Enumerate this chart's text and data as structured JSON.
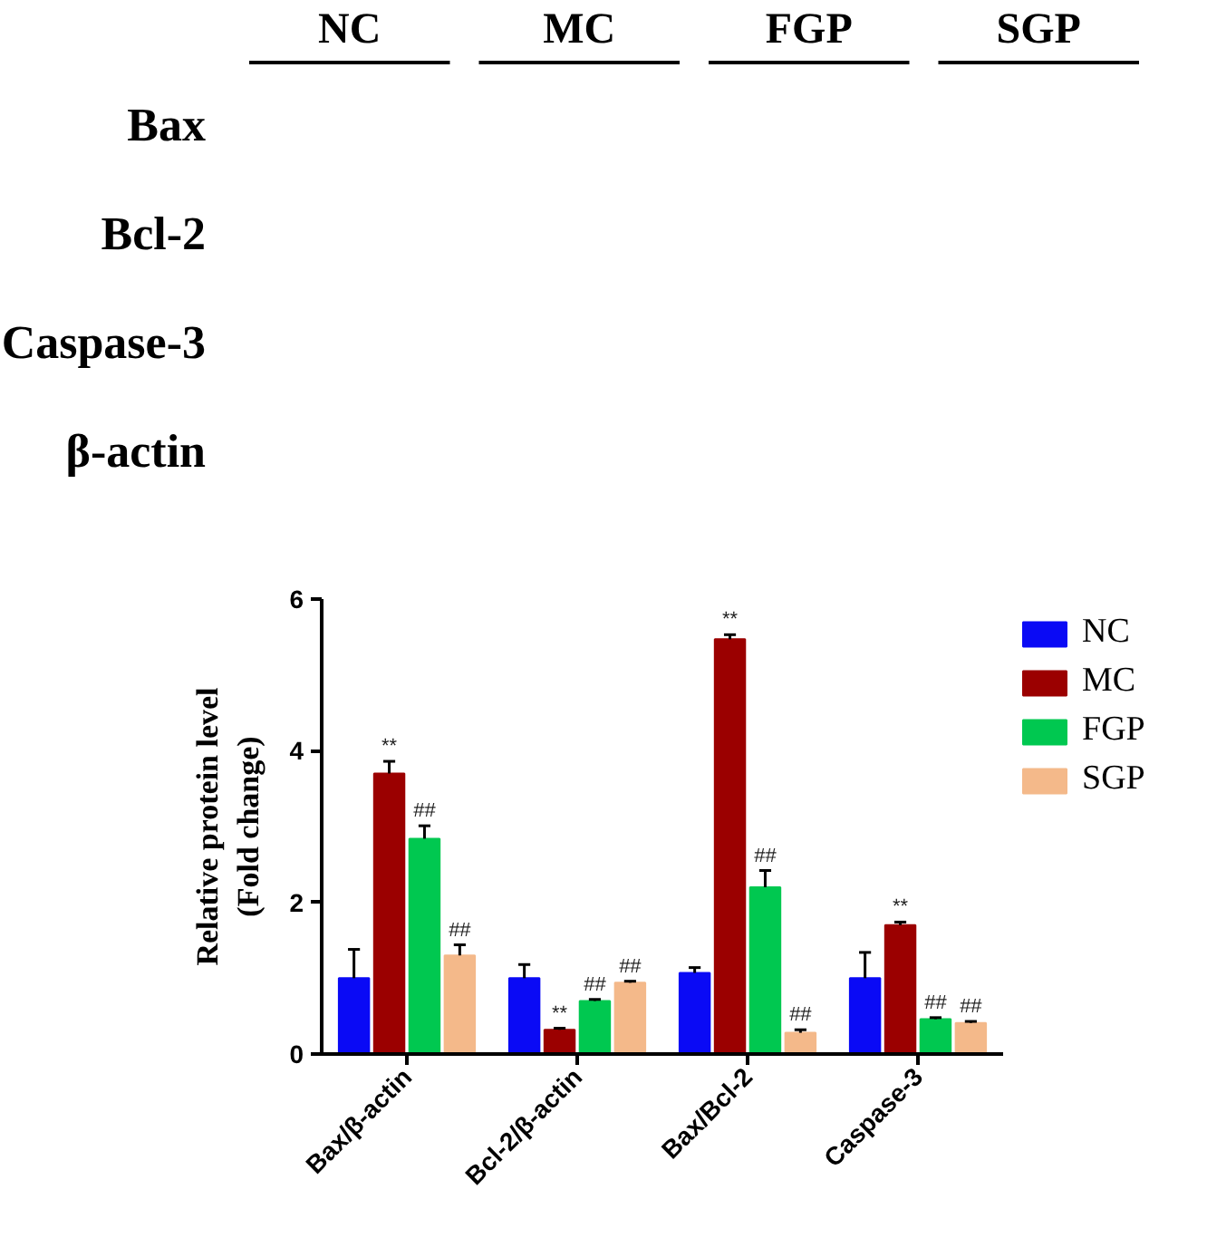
{
  "chart_data": [
    {
      "type": "other",
      "categories": [
        "NC",
        "MC",
        "FGP",
        "SGP"
      ],
      "y_categories": [
        "Bax",
        "Bcl-2",
        "Caspase-3",
        "β-actin"
      ]
    },
    {
      "type": "bar",
      "ylabel": "Relative protein level\n(Fold change)",
      "categories": [
        "Bax/β-actin",
        "Bcl-2/β-actin",
        "Bax/Bcl-2",
        "Caspase-3"
      ],
      "series": [
        {
          "name": "NC",
          "color": "#0a0af5",
          "values": [
            1.0,
            1.0,
            1.07,
            1.0
          ],
          "errors": [
            [
              1.0,
              1.38
            ],
            [
              1.0,
              1.18
            ],
            [
              1.07,
              1.14
            ],
            [
              1.0,
              1.34
            ]
          ]
        },
        {
          "name": "MC",
          "color": "#9b0000",
          "values": [
            3.7,
            0.32,
            5.47,
            1.7
          ],
          "errors": [
            [
              3.7,
              3.86
            ],
            [
              0.32,
              0.34
            ],
            [
              5.47,
              5.53
            ],
            [
              1.7,
              1.74
            ]
          ],
          "value_labels": [
            "**",
            "**",
            "**",
            "**"
          ]
        },
        {
          "name": "FGP",
          "color": "#00c850",
          "values": [
            2.84,
            0.7,
            2.2,
            0.46
          ],
          "errors": [
            [
              2.84,
              3.01
            ],
            [
              0.7,
              0.72
            ],
            [
              2.2,
              2.42
            ],
            [
              0.46,
              0.48
            ]
          ],
          "value_labels": [
            "##",
            "##",
            "##",
            "##"
          ]
        },
        {
          "name": "SGP",
          "color": "#f4b98a",
          "values": [
            1.3,
            0.94,
            0.28,
            0.41
          ],
          "errors": [
            [
              1.3,
              1.44
            ],
            [
              0.94,
              0.96
            ],
            [
              0.28,
              0.32
            ],
            [
              0.41,
              0.43
            ]
          ],
          "value_labels": [
            "##",
            "##",
            "##",
            "##"
          ]
        }
      ],
      "ylim": [
        0,
        6
      ],
      "yticks": [
        0,
        2,
        4,
        6
      ],
      "grid": false,
      "legend": "top right"
    }
  ]
}
